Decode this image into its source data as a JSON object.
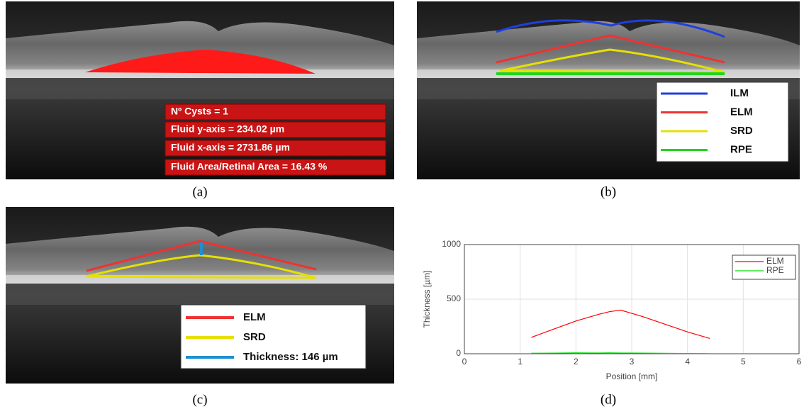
{
  "panels": {
    "a": {
      "label": "(a)",
      "annotations": [
        "Nº Cysts = 1",
        "Fluid y-axis = 234.02 µm",
        "Fluid x-axis = 2731.86 µm",
        "Fluid Area/Retinal Area = 16.43 %"
      ]
    },
    "b": {
      "label": "(b)",
      "legend": [
        {
          "name": "ILM",
          "color": "#1f3fe0"
        },
        {
          "name": "ELM",
          "color": "#f03232"
        },
        {
          "name": "SRD",
          "color": "#e6e000"
        },
        {
          "name": "RPE",
          "color": "#22d422"
        }
      ]
    },
    "c": {
      "label": "(c)",
      "legend": [
        {
          "name": "ELM",
          "color": "#f03232"
        },
        {
          "name": "SRD",
          "color": "#e6e000"
        },
        {
          "name": "Thickness: 146 µm",
          "color": "#1e90d0"
        }
      ]
    },
    "d": {
      "label": "(d)"
    }
  },
  "chart_data": {
    "type": "line",
    "xlabel": "Position [mm]",
    "ylabel": "Thickness [µm]",
    "xlim": [
      0,
      6
    ],
    "xticks": [
      0,
      1,
      2,
      3,
      4,
      5,
      6
    ],
    "ylim": [
      0,
      1000
    ],
    "yticks": [
      0,
      500,
      1000
    ],
    "grid": true,
    "legend": "upper right",
    "x": [
      1.2,
      1.6,
      2.0,
      2.4,
      2.6,
      2.8,
      3.2,
      3.6,
      4.0,
      4.4
    ],
    "series": [
      {
        "name": "ELM",
        "color": "#ff0000",
        "values": [
          150,
          225,
          300,
          360,
          385,
          400,
          340,
          270,
          200,
          140
        ]
      },
      {
        "name": "RPE",
        "color": "#00dd00",
        "values": [
          5,
          6,
          8,
          7,
          8,
          7,
          6,
          4,
          3,
          2
        ]
      }
    ]
  }
}
